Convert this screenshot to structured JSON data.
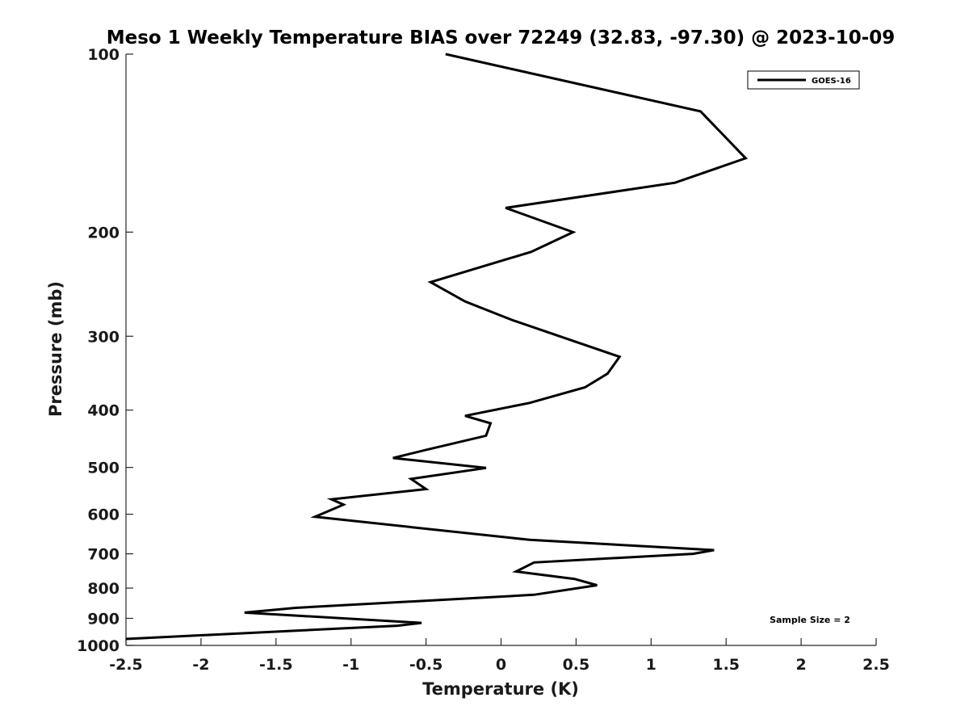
{
  "chart_data": {
    "type": "line",
    "title": "Meso 1 Weekly Temperature BIAS over 72249 (32.83, -97.30) @ 2023-10-09",
    "xlabel": "Temperature (K)",
    "ylabel": "Pressure (mb)",
    "xlim": [
      -2.5,
      2.5
    ],
    "ylim": [
      100,
      1000
    ],
    "y_scale": "log",
    "y_reversed": true,
    "x_ticks": [
      -2.5,
      -2,
      -1.5,
      -1,
      -0.5,
      0,
      0.5,
      1,
      1.5,
      2,
      2.5
    ],
    "x_tick_labels": [
      "-2.5",
      "-2",
      "-1.5",
      "-1",
      "-0.5",
      "0",
      "0.5",
      "1",
      "1.5",
      "2",
      "2.5"
    ],
    "y_ticks": [
      100,
      200,
      300,
      400,
      500,
      600,
      700,
      800,
      900,
      1000
    ],
    "y_tick_labels": [
      "100",
      "200",
      "300",
      "400",
      "500",
      "600",
      "700",
      "800",
      "900",
      "1000"
    ],
    "grid": false,
    "legend_position": "top-right",
    "annotation": "Sample Size = 2",
    "color": "#000000",
    "series": [
      {
        "name": "GOES-16",
        "x": [
          -0.37,
          1.33,
          1.63,
          1.16,
          0.03,
          0.48,
          0.2,
          -0.47,
          -0.24,
          0.08,
          0.79,
          0.71,
          0.56,
          0.19,
          -0.24,
          -0.07,
          -0.1,
          -0.5,
          -0.72,
          -0.1,
          -0.6,
          -0.5,
          -1.13,
          -1.05,
          -1.24,
          0.19,
          1.42,
          1.28,
          0.22,
          0.1,
          0.49,
          0.64,
          0.22,
          -1.37,
          -1.71,
          -0.53,
          -0.69,
          -2.5
        ],
        "y": [
          100,
          125,
          150,
          165,
          182,
          200,
          216,
          243,
          262,
          282,
          325,
          347,
          366,
          389,
          409,
          421,
          442,
          467,
          482,
          501,
          523,
          544,
          566,
          578,
          606,
          663,
          690,
          700,
          724,
          750,
          772,
          791,
          821,
          864,
          880,
          916,
          926,
          975
        ]
      }
    ]
  }
}
